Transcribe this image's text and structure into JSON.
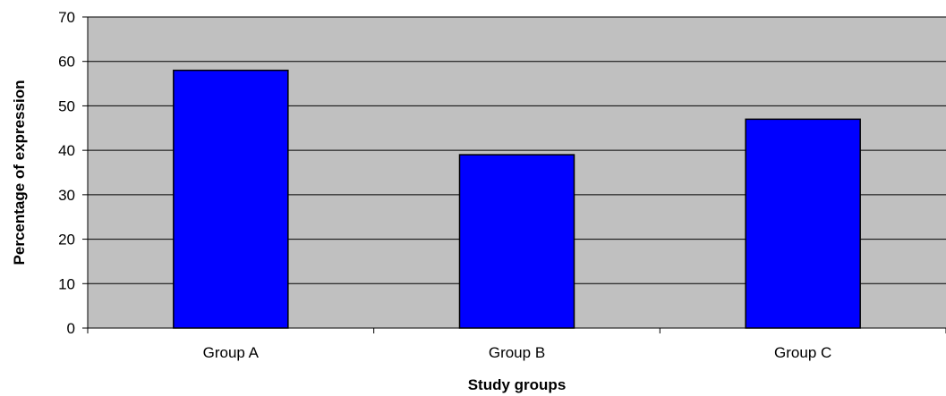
{
  "chart_data": {
    "type": "bar",
    "title": "",
    "xlabel": "Study groups",
    "ylabel": "Percentage of expression",
    "categories": [
      "Group A",
      "Group B",
      "Group C"
    ],
    "values": [
      58,
      39,
      47
    ],
    "ylim": [
      0,
      70
    ],
    "yticks": [
      "0",
      "10",
      "20",
      "30",
      "40",
      "50",
      "60",
      "70"
    ],
    "grid": true,
    "legend": "none",
    "colors": {
      "bar_fill": "#0000FF",
      "bar_stroke": "#000000",
      "plot_background": "#C0C0C0",
      "gridline": "#000000"
    }
  }
}
